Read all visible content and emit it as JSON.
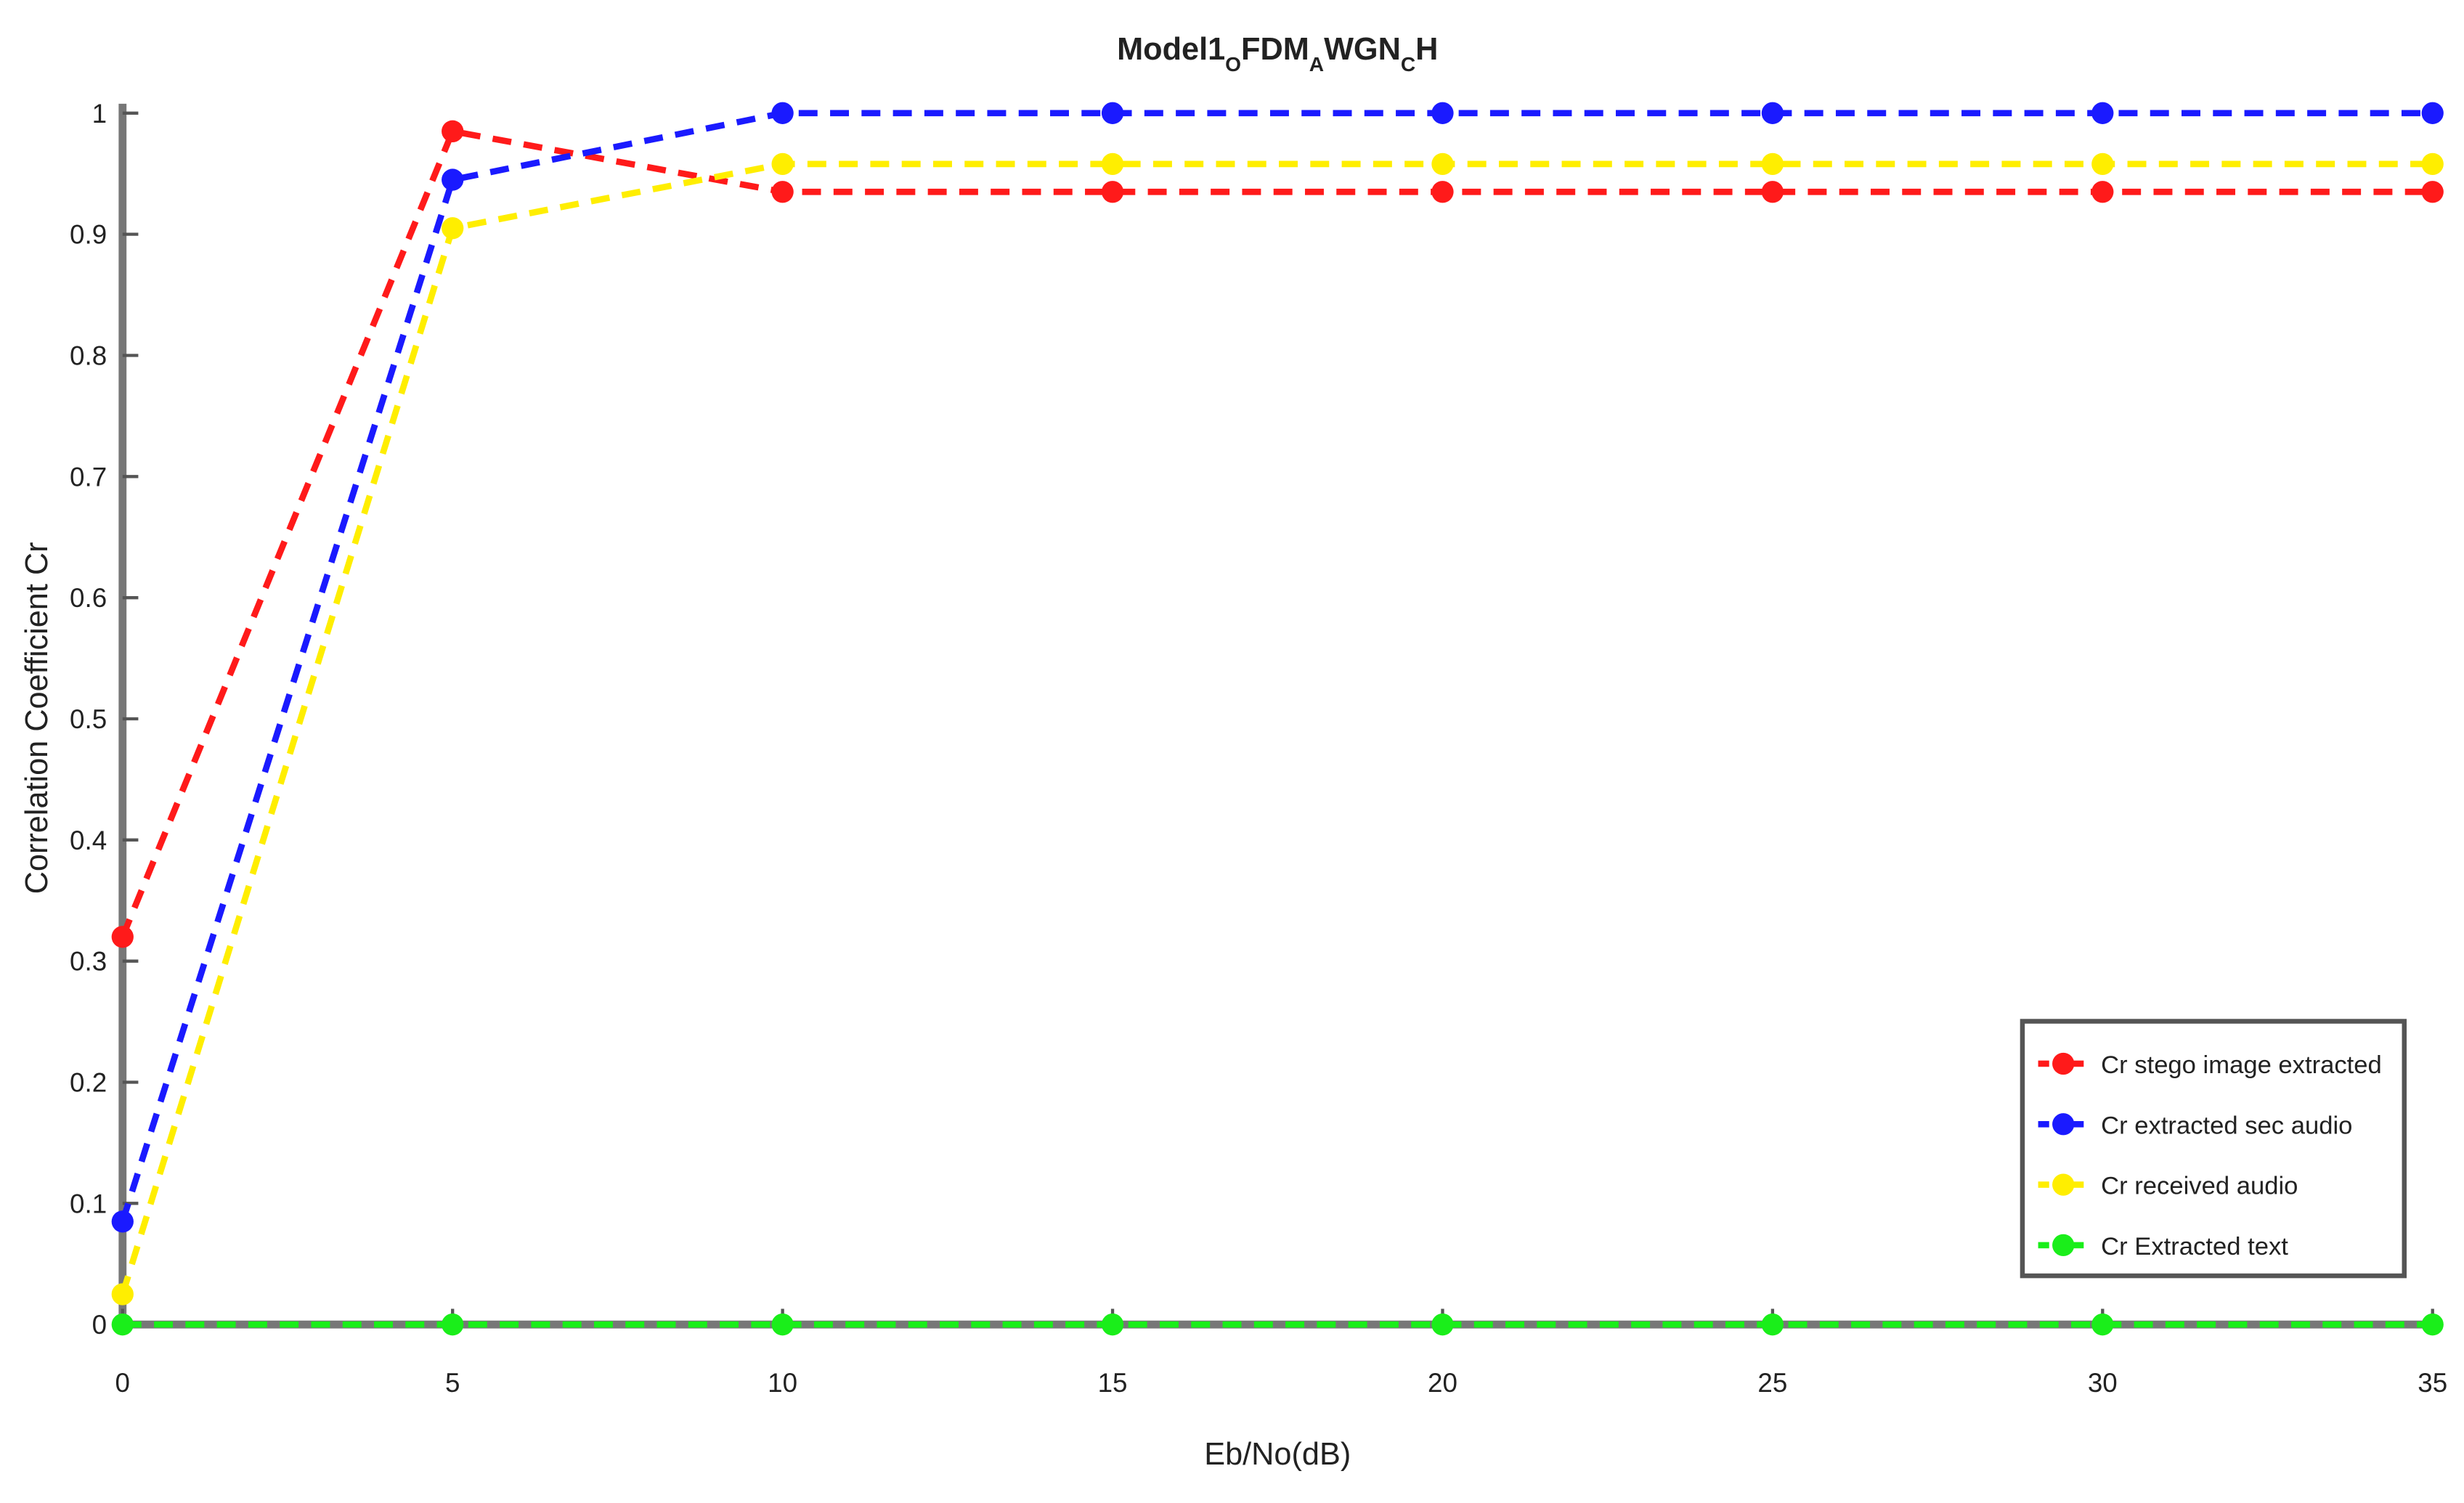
{
  "chart_data": {
    "type": "line",
    "title": [
      {
        "text": "Model1",
        "sub": false
      },
      {
        "text": "O",
        "sub": true
      },
      {
        "text": "FDM",
        "sub": false
      },
      {
        "text": "A",
        "sub": true
      },
      {
        "text": "WGN",
        "sub": false
      },
      {
        "text": "C",
        "sub": true
      },
      {
        "text": "H",
        "sub": false
      }
    ],
    "xlabel": "Eb/No(dB)",
    "ylabel": "Correlation Coefficient Cr",
    "x": [
      0,
      5,
      10,
      15,
      20,
      25,
      30,
      35
    ],
    "series": [
      {
        "name": "Cr stego image extracted",
        "color": "#ff1a1a",
        "values": [
          0.32,
          0.985,
          0.935,
          0.935,
          0.935,
          0.935,
          0.935,
          0.935
        ]
      },
      {
        "name": "Cr extracted sec audio",
        "color": "#1a1aff",
        "values": [
          0.085,
          0.945,
          1,
          1,
          1,
          1,
          1,
          1
        ]
      },
      {
        "name": "Cr received audio",
        "color": "#ffee00",
        "values": [
          0.025,
          0.905,
          0.958,
          0.958,
          0.958,
          0.958,
          0.958,
          0.958
        ]
      },
      {
        "name": "Cr Extracted text",
        "color": "#1aee1a",
        "values": [
          0,
          0,
          0,
          0,
          0,
          0,
          0,
          0
        ]
      }
    ],
    "xlim": [
      0,
      35
    ],
    "xticks": [
      0,
      5,
      10,
      15,
      20,
      25,
      30,
      35
    ],
    "ylim": [
      0,
      1
    ],
    "yticks": [
      0,
      0.1,
      0.2,
      0.3,
      0.4,
      0.5,
      0.6,
      0.7,
      0.8,
      0.9,
      1
    ],
    "grid": false,
    "legend": "lower right",
    "line_style": "dashed",
    "marker": "circle"
  }
}
